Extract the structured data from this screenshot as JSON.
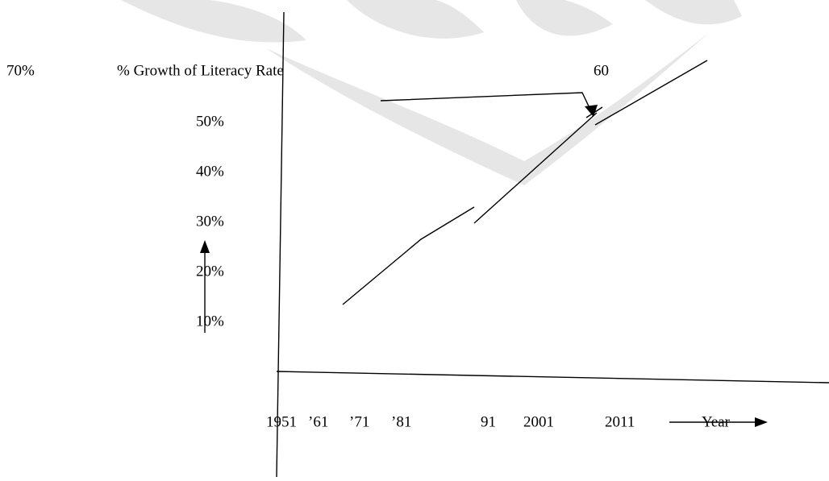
{
  "figure": {
    "title": "% Growth of Literacy Rate",
    "side_labels": [
      "70%",
      "60"
    ],
    "y_labels": [
      "50%",
      "40%",
      "30%",
      "20%",
      "10%"
    ],
    "x_labels": [
      "1951",
      "’61",
      "’71",
      "’81",
      "91",
      "2001",
      "2011"
    ],
    "x_axis_label": "Year"
  }
}
